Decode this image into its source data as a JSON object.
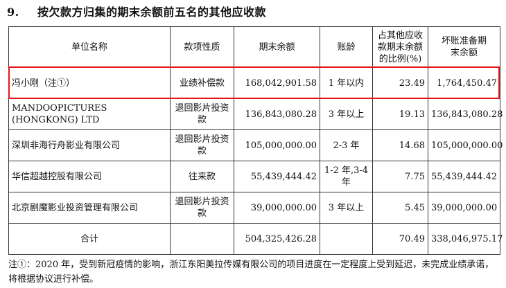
{
  "heading": {
    "number": "9.",
    "title": "按欠款方归集的期末余额前五名的其他应收款"
  },
  "table": {
    "headers": [
      "单位名称",
      "款项性质",
      "期末余额",
      "账龄",
      "占其他应收款期末余额的比例(%)",
      "坏账准备期末余额"
    ],
    "rows": [
      [
        "冯小刚（注①）",
        "业绩补偿款",
        "168,042,901.58",
        "1 年以内",
        "23.49",
        "1,764,450.47"
      ],
      [
        "MANDOOPICTURES (HONGKONG) LTD",
        "退回影片投资款",
        "136,843,080.28",
        "3 年以上",
        "19.13",
        "136,843,080.28"
      ],
      [
        "深圳非海行舟影业有限公司",
        "退回影片投资款",
        "105,000,000.00",
        "2-3 年",
        "14.68",
        "105,000,000.00"
      ],
      [
        "华信超越控股有限公司",
        "往来款",
        "55,439,444.42",
        "1-2 年,3-4 年",
        "7.75",
        "55,439,444.42"
      ],
      [
        "北京剧魔影业投资管理有限公司",
        "退回影片投资款",
        "39,000,000.00",
        "3 年以上",
        "5.45",
        "39,000,000.00"
      ]
    ],
    "total": [
      "合计",
      "",
      "504,325,426.28",
      "",
      "70.49",
      "338,046,975.17"
    ]
  },
  "note": "注①：2020 年，受到新冠疫情的影响，浙江东阳美拉传媒有限公司的项目进度在一定程度上受到延迟，未完成业绩承诺，将根据协议进行补偿。",
  "colors": {
    "highlight": "#e5141a",
    "border": "#333333"
  }
}
